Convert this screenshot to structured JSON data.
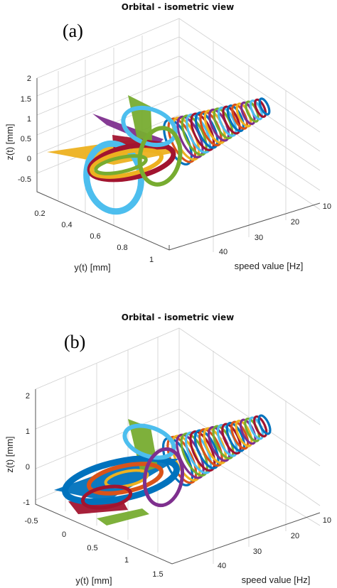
{
  "chart_data": [
    {
      "panel": "(a)",
      "type": "line",
      "title": "Orbital - isometric view",
      "xlabel": "speed value [Hz]",
      "ylabel": "y(t) [mm]",
      "zlabel": "z(t) [mm]",
      "x_ticks": [
        "10",
        "20",
        "30",
        "40"
      ],
      "y_ticks": [
        "0.2",
        "0.4",
        "0.6",
        "0.8",
        "1"
      ],
      "z_ticks": [
        "2",
        "1.5",
        "1",
        "0.5",
        "0",
        "-0.5"
      ],
      "xlim": [
        8,
        48
      ],
      "ylim": [
        0.1,
        1.1
      ],
      "zlim": [
        -0.8,
        2.1
      ],
      "grid": true,
      "series_colors": [
        "#0072BD",
        "#D95319",
        "#EDB120",
        "#7E2F8E",
        "#77AC30",
        "#4DBEEE",
        "#A2142F"
      ]
    },
    {
      "panel": "(b)",
      "type": "line",
      "title": "Orbital - isometric view",
      "xlabel": "speed value [Hz]",
      "ylabel": "y(t) [mm]",
      "zlabel": "z(t) [mm]",
      "x_ticks": [
        "10",
        "20",
        "30",
        "40"
      ],
      "y_ticks": [
        "-0.5",
        "0",
        "0.5",
        "1",
        "1.5"
      ],
      "z_ticks": [
        "2",
        "1",
        "0",
        "-1"
      ],
      "xlim": [
        8,
        48
      ],
      "ylim": [
        -0.6,
        1.6
      ],
      "zlim": [
        -1.3,
        2.3
      ],
      "grid": true,
      "series_colors": [
        "#0072BD",
        "#D95319",
        "#EDB120",
        "#7E2F8E",
        "#77AC30",
        "#4DBEEE",
        "#A2142F"
      ]
    }
  ]
}
